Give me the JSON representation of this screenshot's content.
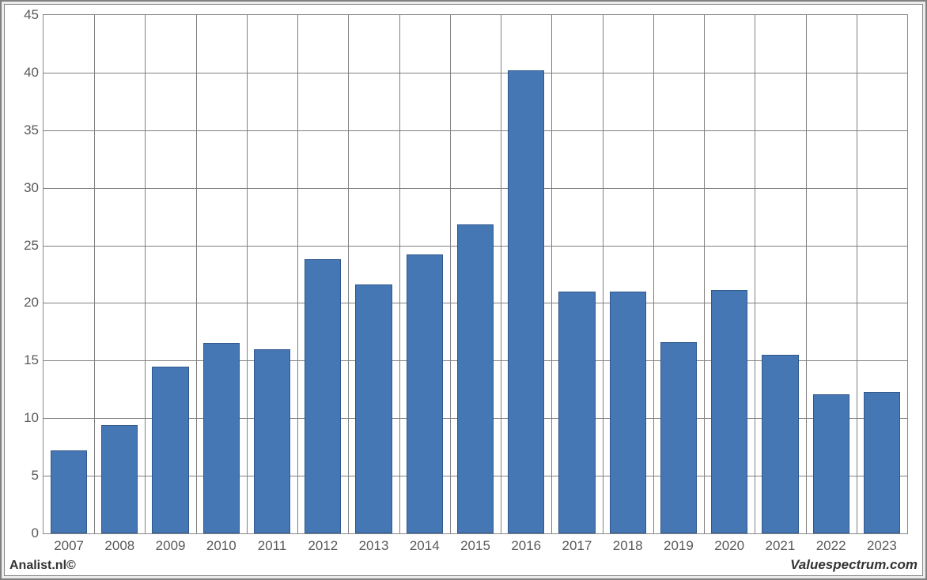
{
  "chart": {
    "type": "bar",
    "categories": [
      "2007",
      "2008",
      "2009",
      "2010",
      "2011",
      "2012",
      "2013",
      "2014",
      "2015",
      "2016",
      "2017",
      "2018",
      "2019",
      "2020",
      "2021",
      "2022",
      "2023"
    ],
    "values": [
      7.2,
      9.4,
      14.5,
      16.5,
      16.0,
      23.8,
      21.6,
      24.2,
      26.8,
      40.2,
      21.0,
      21.0,
      16.6,
      21.1,
      15.5,
      12.1,
      12.3
    ],
    "bar_color": "#4577b4",
    "bar_border_color": "#30588c",
    "background_color": "#ffffff",
    "outer_background_color": "#ececec",
    "border_color": "#808080",
    "grid_color": "#808080",
    "ylim": [
      0,
      45
    ],
    "ytick_step": 5,
    "y_ticks": [
      0,
      5,
      10,
      15,
      20,
      25,
      30,
      35,
      40,
      45
    ],
    "bar_width": 0.72,
    "label_color": "#5a5a5a",
    "label_fontsize": 17
  },
  "footer": {
    "left": "Analist.nl©",
    "right": "Valuespectrum.com"
  }
}
